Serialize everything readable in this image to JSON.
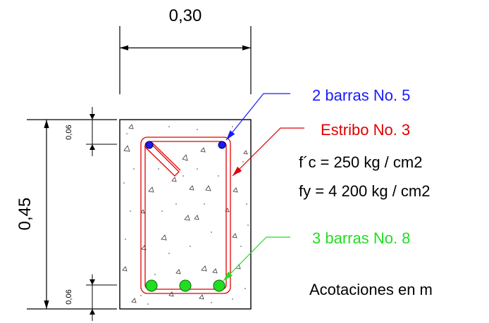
{
  "dimensions": {
    "width": "0,30",
    "height": "0,45",
    "cover_top": "0,06",
    "cover_bottom": "0,06"
  },
  "labels": {
    "top_bars": "2 barras No. 5",
    "stirrup": "Estribo No. 3",
    "fc": "f´c = 250 kg / cm2",
    "fy": "fy = 4 200 kg / cm2",
    "bottom_bars": "3 barras No. 8",
    "units_note": "Acotaciones en m"
  },
  "colors": {
    "top_bars": "#1a1aff",
    "stirrup": "#e00000",
    "bottom_bars": "#22dd22",
    "dimension_lines": "#000000",
    "concrete_outline": "#000000"
  }
}
